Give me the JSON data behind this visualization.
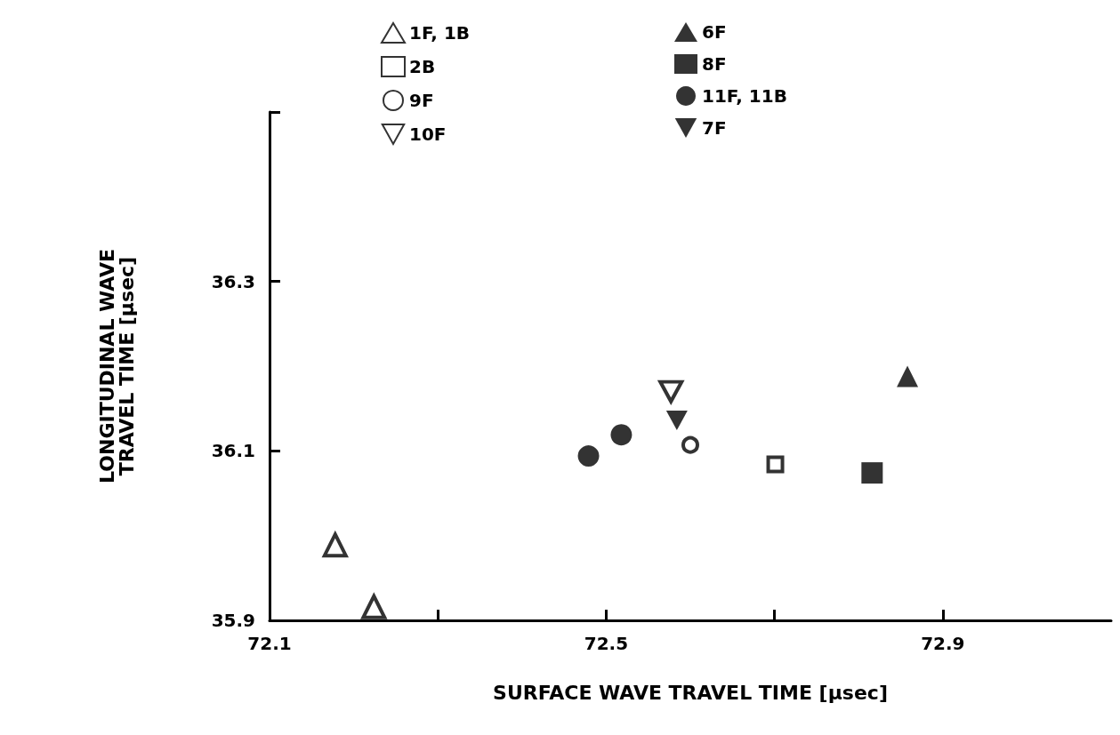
{
  "chart_data": {
    "type": "scatter",
    "xlabel": "SURFACE WAVE TRAVEL TIME [μsec]",
    "ylabel": "LONGITUDINAL WAVE\nTRAVEL TIME [μsec]",
    "xlim": [
      72.1,
      73.1
    ],
    "xticks": [
      72.1,
      {
        "value": 72.3,
        "label": null
      },
      72.5,
      {
        "value": 72.7,
        "label": null
      },
      72.9
    ],
    "ylim": [
      35.9,
      36.5
    ],
    "yticks": [
      35.9,
      36.1,
      36.3,
      {
        "value": 36.5,
        "label": null
      }
    ],
    "legend": "top",
    "series": [
      {
        "name": "1F, 1B",
        "color": "#000000",
        "marker": "triangle-open",
        "x": [
          72.178,
          72.224
        ],
        "values": [
          35.989,
          35.916
        ]
      },
      {
        "name": "6F",
        "color": "#000000",
        "marker": "triangle",
        "x": [
          72.858
        ],
        "values": [
          36.188
        ]
      },
      {
        "name": "2B",
        "color": "#000000",
        "marker": "square-open",
        "x": [
          72.701
        ],
        "values": [
          36.084
        ]
      },
      {
        "name": "8F",
        "color": "#000000",
        "marker": "square",
        "x": [
          72.816
        ],
        "values": [
          36.074
        ]
      },
      {
        "name": "9F",
        "color": "#000000",
        "marker": "circle-open",
        "x": [
          72.6
        ],
        "values": [
          36.107
        ]
      },
      {
        "name": "11F, 11B",
        "color": "#000000",
        "marker": "circle",
        "x": [
          72.479,
          72.518
        ],
        "values": [
          36.094,
          36.119
        ]
      },
      {
        "name": "10F",
        "color": "#000000",
        "marker": "triangle-down-open",
        "x": [
          72.577
        ],
        "values": [
          36.17
        ]
      },
      {
        "name": "7F",
        "color": "#000000",
        "marker": "triangle-down",
        "x": [
          72.584
        ],
        "values": [
          36.136
        ]
      }
    ]
  }
}
